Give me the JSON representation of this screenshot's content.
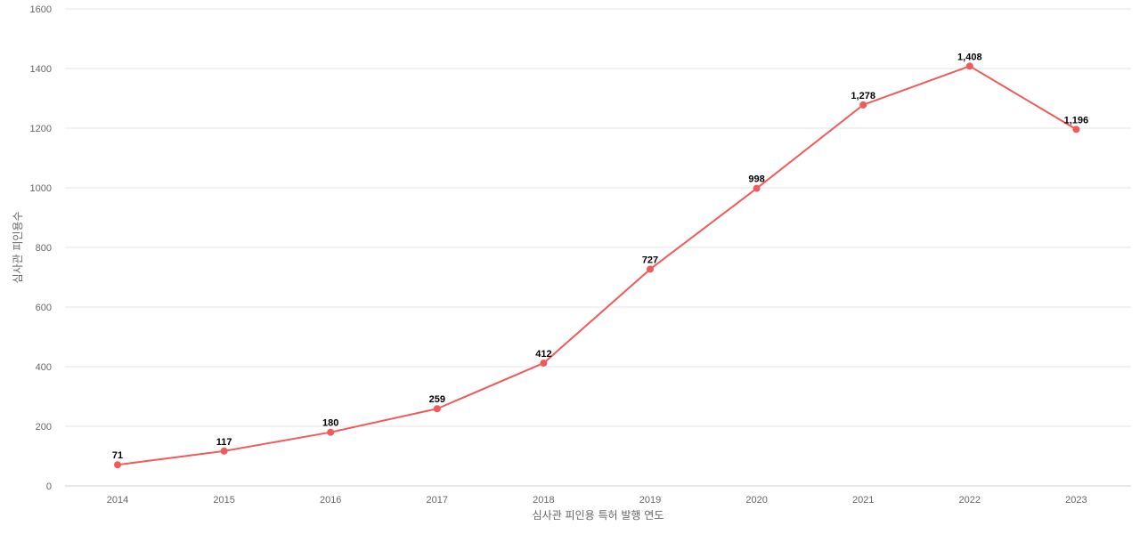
{
  "chart_data": {
    "type": "line",
    "title": "",
    "xlabel": "심사관 피인용 특허 발행 연도",
    "ylabel": "심사관 피인용수",
    "x": [
      "2014",
      "2015",
      "2016",
      "2017",
      "2018",
      "2019",
      "2020",
      "2021",
      "2022",
      "2023"
    ],
    "series": [
      {
        "values": [
          71,
          117,
          180,
          259,
          412,
          727,
          998,
          1278,
          1408,
          1196
        ],
        "data_labels": [
          "71",
          "117",
          "180",
          "259",
          "412",
          "727",
          "998",
          "1,278",
          "1,408",
          "1,196"
        ],
        "color": "#f05a5a"
      }
    ],
    "ylim": [
      0,
      1600
    ],
    "yticks": [
      "0",
      "200",
      "400",
      "600",
      "800",
      "1000",
      "1200",
      "1400",
      "1600"
    ],
    "grid": true,
    "legend": "none"
  }
}
